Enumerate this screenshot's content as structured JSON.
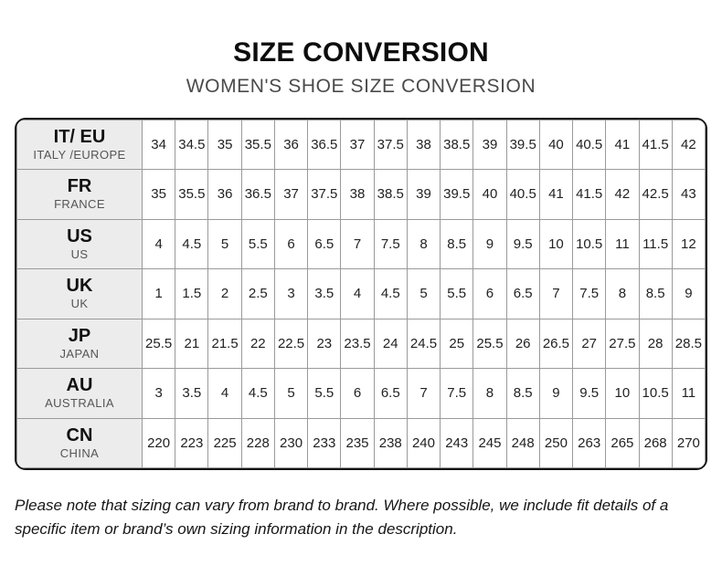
{
  "page": {
    "title": "SIZE CONVERSION",
    "subtitle": "WOMEN'S SHOE SIZE CONVERSION",
    "footnote": "Please note that sizing can vary from brand to brand. Where possible, we include fit details of a specific item or brand’s own sizing information in the description."
  },
  "chart_data": {
    "type": "table",
    "title": "SIZE CONVERSION",
    "subtitle": "WOMEN'S SHOE SIZE CONVERSION",
    "columns_per_row": 17,
    "rows": [
      {
        "code": "IT/ EU",
        "region": "ITALY /EUROPE",
        "sizes": [
          "34",
          "34.5",
          "35",
          "35.5",
          "36",
          "36.5",
          "37",
          "37.5",
          "38",
          "38.5",
          "39",
          "39.5",
          "40",
          "40.5",
          "41",
          "41.5",
          "42"
        ]
      },
      {
        "code": "FR",
        "region": "FRANCE",
        "sizes": [
          "35",
          "35.5",
          "36",
          "36.5",
          "37",
          "37.5",
          "38",
          "38.5",
          "39",
          "39.5",
          "40",
          "40.5",
          "41",
          "41.5",
          "42",
          "42.5",
          "43"
        ]
      },
      {
        "code": "US",
        "region": "US",
        "sizes": [
          "4",
          "4.5",
          "5",
          "5.5",
          "6",
          "6.5",
          "7",
          "7.5",
          "8",
          "8.5",
          "9",
          "9.5",
          "10",
          "10.5",
          "11",
          "11.5",
          "12"
        ]
      },
      {
        "code": "UK",
        "region": "UK",
        "sizes": [
          "1",
          "1.5",
          "2",
          "2.5",
          "3",
          "3.5",
          "4",
          "4.5",
          "5",
          "5.5",
          "6",
          "6.5",
          "7",
          "7.5",
          "8",
          "8.5",
          "9"
        ]
      },
      {
        "code": "JP",
        "region": "JAPAN",
        "sizes": [
          "25.5",
          "21",
          "21.5",
          "22",
          "22.5",
          "23",
          "23.5",
          "24",
          "24.5",
          "25",
          "25.5",
          "26",
          "26.5",
          "27",
          "27.5",
          "28",
          "28.5"
        ]
      },
      {
        "code": "AU",
        "region": "AUSTRALIA",
        "sizes": [
          "3",
          "3.5",
          "4",
          "4.5",
          "5",
          "5.5",
          "6",
          "6.5",
          "7",
          "7.5",
          "8",
          "8.5",
          "9",
          "9.5",
          "10",
          "10.5",
          "11"
        ]
      },
      {
        "code": "CN",
        "region": "CHINA",
        "sizes": [
          "220",
          "223",
          "225",
          "228",
          "230",
          "233",
          "235",
          "238",
          "240",
          "243",
          "245",
          "248",
          "250",
          "263",
          "265",
          "268",
          "270"
        ]
      }
    ]
  },
  "colors": {
    "outer_border": "#141414",
    "grid_line": "#9a9a9a",
    "header_cell_bg": "#ececec",
    "title_text": "#0d0d0d",
    "subtitle_text": "#4a4a4a",
    "region_text": "#555555"
  }
}
